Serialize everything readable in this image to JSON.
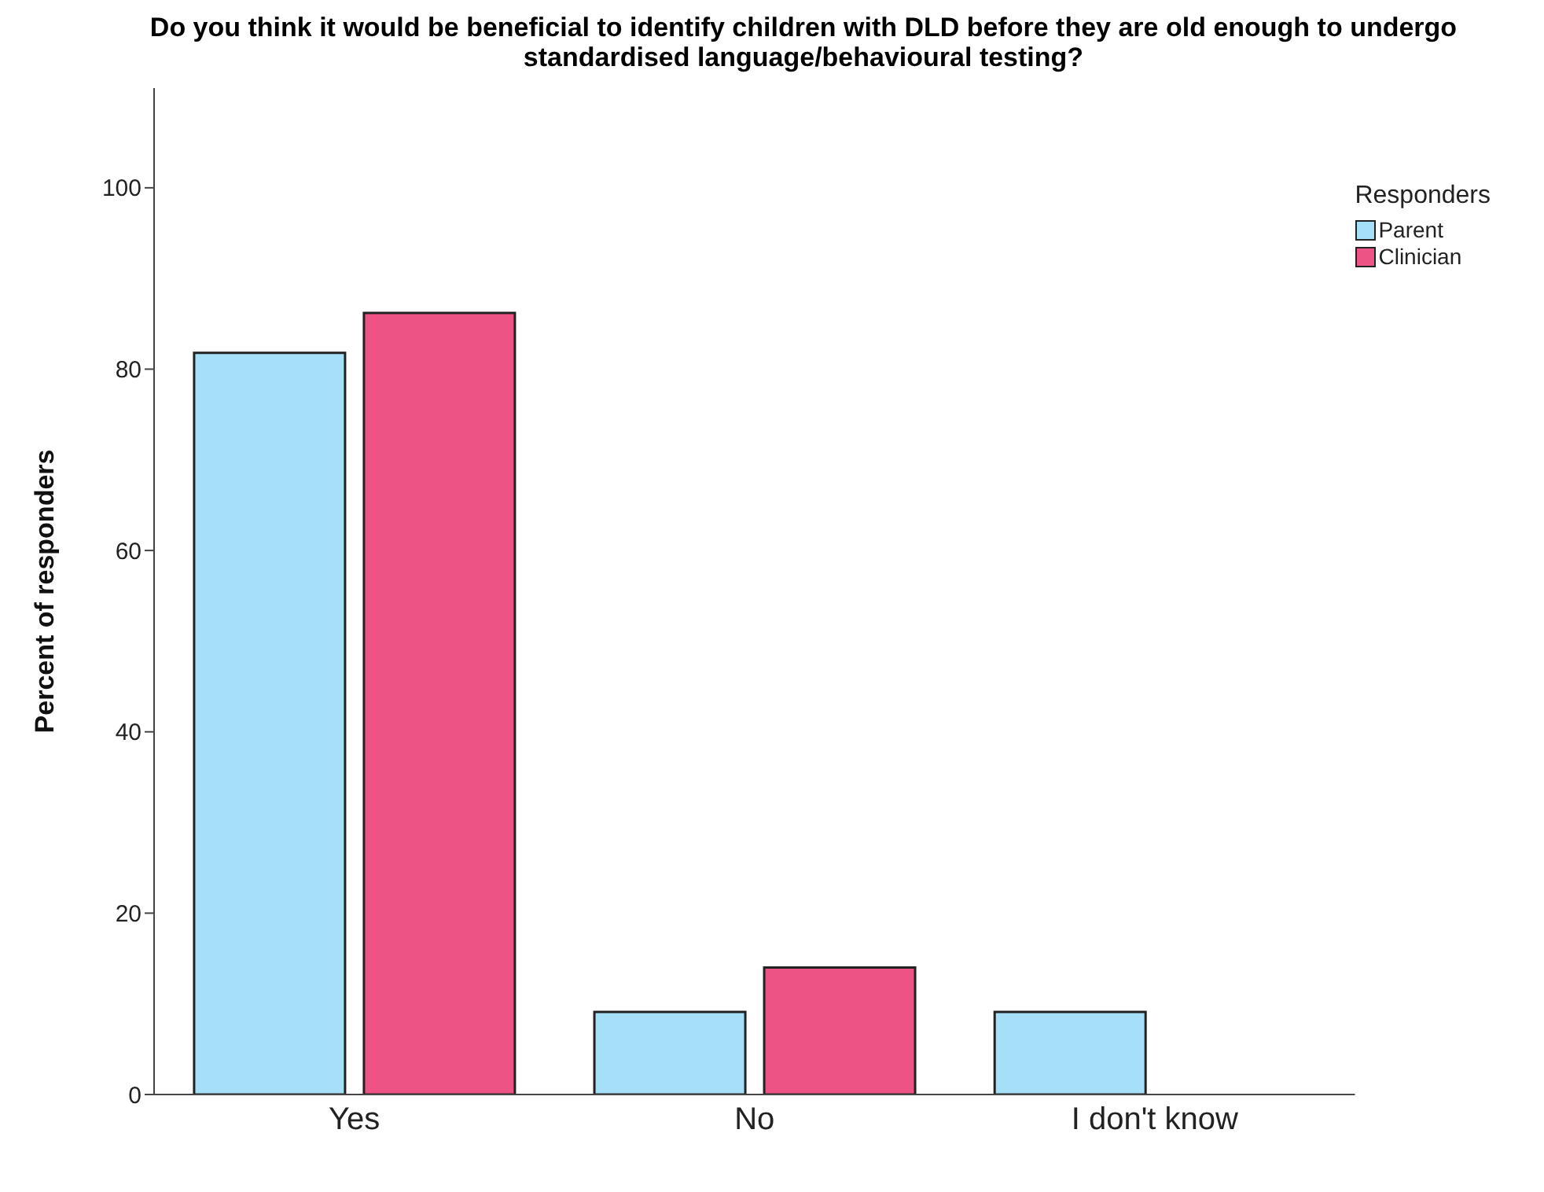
{
  "chart_data": {
    "type": "bar",
    "title": "Do you think it would be beneficial to identify children with DLD before they are old enough to undergo standardised language/behavioural testing?",
    "xlabel": null,
    "ylabel": "Percent of responders",
    "legend_title": "Responders",
    "categories": [
      "Yes",
      "No",
      "I don't know"
    ],
    "series": [
      {
        "name": "Parent",
        "color": "#a6dff8",
        "values": [
          81.8,
          9.1,
          9.1
        ]
      },
      {
        "name": "Clinician",
        "color": "#ee5385",
        "values": [
          86.2,
          14.0,
          0
        ]
      }
    ],
    "ylim": [
      0,
      111
    ],
    "yticks": [
      0,
      20,
      40,
      60,
      80,
      100
    ],
    "grid": false,
    "legend": "top right"
  }
}
